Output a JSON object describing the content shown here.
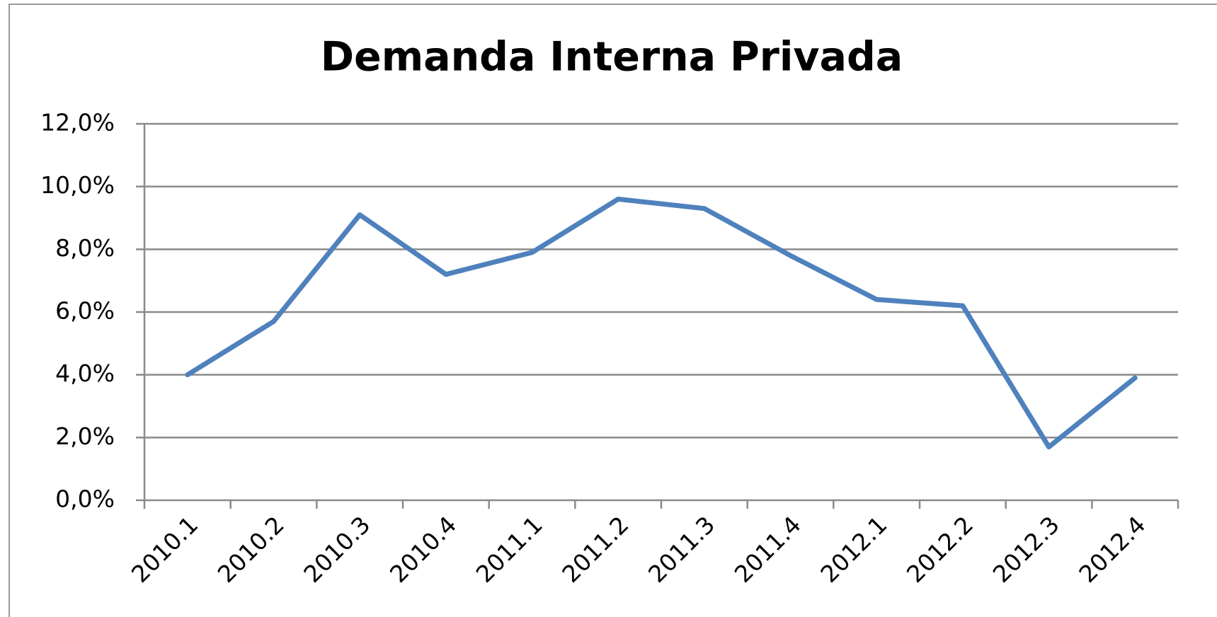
{
  "chart_data": {
    "type": "line",
    "title": "Demanda Interna Privada",
    "categories": [
      "2010.1",
      "2010.2",
      "2010.3",
      "2010.4",
      "2011.1",
      "2011.2",
      "2011.3",
      "2011.4",
      "2012.1",
      "2012.2",
      "2012.3",
      "2012.4"
    ],
    "values": [
      4.0,
      5.7,
      9.1,
      7.2,
      7.9,
      9.6,
      9.3,
      7.8,
      6.4,
      6.2,
      1.7,
      3.9
    ],
    "color": "#4f81bd",
    "ylim": [
      0,
      12
    ],
    "yticks": [
      {
        "value": 0,
        "label": "0,0%"
      },
      {
        "value": 2,
        "label": "2,0%"
      },
      {
        "value": 4,
        "label": "4,0%"
      },
      {
        "value": 6,
        "label": "6,0%"
      },
      {
        "value": 8,
        "label": "8,0%"
      },
      {
        "value": 10,
        "label": "10,0%"
      },
      {
        "value": 12,
        "label": "12,0%"
      }
    ],
    "grid": true
  }
}
